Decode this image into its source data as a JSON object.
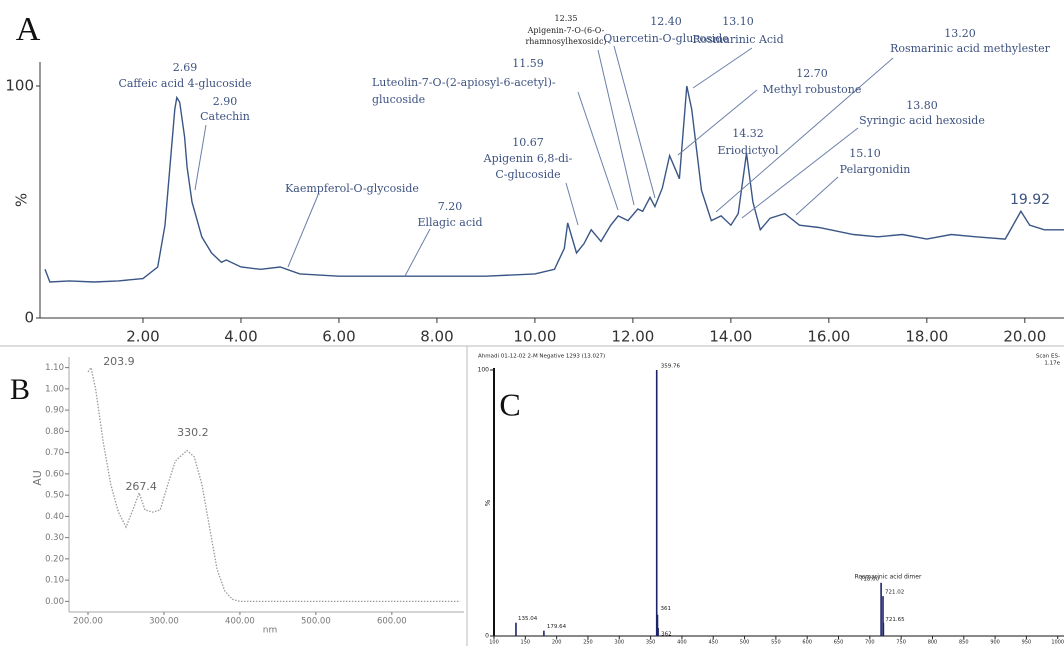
{
  "chart_data": [
    {
      "type": "line",
      "panel": "A",
      "color": "#3a5686",
      "line_style": "solid",
      "x": [
        0,
        0.1,
        0.5,
        1,
        1.5,
        2,
        2.3,
        2.45,
        2.55,
        2.65,
        2.69,
        2.75,
        2.85,
        2.9,
        3,
        3.2,
        3.4,
        3.6,
        3.7,
        4,
        4.4,
        4.8,
        5.2,
        6,
        7,
        7.2,
        8,
        9,
        10,
        10.4,
        10.6,
        10.67,
        10.85,
        11,
        11.15,
        11.35,
        11.55,
        11.7,
        11.9,
        12.1,
        12.2,
        12.35,
        12.45,
        12.6,
        12.75,
        12.85,
        12.95,
        13.1,
        13.2,
        13.4,
        13.6,
        13.8,
        14,
        14.15,
        14.32,
        14.45,
        14.6,
        14.8,
        15.1,
        15.4,
        15.8,
        16.5,
        17,
        17.5,
        18,
        18.5,
        19,
        19.6,
        19.92,
        20.1,
        20.4,
        20.8
      ],
      "values": [
        21,
        15.5,
        16,
        15.5,
        16,
        17,
        22,
        40,
        65,
        90,
        95,
        93,
        78,
        65,
        50,
        35,
        28,
        24,
        25,
        22,
        21,
        22,
        19,
        18,
        18,
        18,
        18,
        18,
        19,
        21,
        30,
        41,
        28,
        32,
        38,
        33,
        40,
        44,
        42,
        47,
        46,
        52,
        48,
        56,
        70,
        65,
        60,
        100,
        90,
        55,
        42,
        44,
        40,
        45,
        71,
        50,
        38,
        43,
        45,
        40,
        39,
        36,
        35,
        36,
        34,
        36,
        35,
        34,
        46,
        40,
        38,
        38
      ],
      "xlim": [
        0,
        20.8
      ],
      "ylim": [
        0,
        100
      ],
      "xticks": [
        {
          "value": 2,
          "label": "2.00"
        },
        {
          "value": 4,
          "label": "4.00"
        },
        {
          "value": 6,
          "label": "6.00"
        },
        {
          "value": 8,
          "label": "8.00"
        },
        {
          "value": 10,
          "label": "10.00"
        },
        {
          "value": 12,
          "label": "12.00"
        },
        {
          "value": 14,
          "label": "14.00"
        },
        {
          "value": 16,
          "label": "16.00"
        },
        {
          "value": 18,
          "label": "18.00"
        },
        {
          "value": 20,
          "label": "20.00"
        }
      ],
      "yticks": [
        0,
        100
      ],
      "ylabel": "%",
      "annotations": [
        {
          "rt": "2.69",
          "name": [
            "Caffeic acid 4-glucoside"
          ]
        },
        {
          "rt": "2.90",
          "name": [
            "Catechin"
          ]
        },
        {
          "name": [
            "Kaempferol-O-glycoside"
          ]
        },
        {
          "rt": "7.20",
          "name": [
            "Ellagic acid"
          ]
        },
        {
          "rt": "11.59",
          "name": [
            "Luteolin-7-O-(2-apiosyl-6-acetyl)-",
            "glucoside"
          ]
        },
        {
          "rt": "10.67",
          "name": [
            "Apigenin 6,8-di-",
            "C-glucoside"
          ]
        },
        {
          "rt": "12.35",
          "name": [
            "Apigenin-7-O-(6-O-",
            "rhamnosylhexosidc)"
          ]
        },
        {
          "rt": "12.40",
          "name": [
            "Quercetin-O-glucoside"
          ]
        },
        {
          "rt": "13.10",
          "name": [
            "Rosmarinic Acid"
          ]
        },
        {
          "rt": "13.20",
          "name": [
            "Rosmarinic acid methylester"
          ]
        },
        {
          "rt": "12.70",
          "name": [
            "Methyl robustone"
          ]
        },
        {
          "rt": "13.80",
          "name": [
            "Syringic acid hexoside"
          ]
        },
        {
          "rt": "14.32",
          "name": [
            "Eriodictyol"
          ]
        },
        {
          "rt": "15.10",
          "name": [
            "Pelargonidin"
          ]
        },
        {
          "rt": "19.92"
        }
      ]
    },
    {
      "type": "line",
      "panel": "B",
      "color": "#9a9a9a",
      "line_style": "dotted",
      "x": [
        200,
        203.9,
        210,
        220,
        230,
        240,
        250,
        258,
        267.4,
        275,
        285,
        295,
        305,
        315,
        330.2,
        340,
        350,
        360,
        370,
        380,
        390,
        400,
        450,
        500,
        600,
        690
      ],
      "values": [
        1.08,
        1.1,
        1.0,
        0.75,
        0.55,
        0.42,
        0.35,
        0.42,
        0.51,
        0.43,
        0.42,
        0.43,
        0.55,
        0.66,
        0.71,
        0.68,
        0.55,
        0.35,
        0.15,
        0.05,
        0.01,
        0,
        0,
        0,
        0,
        0
      ],
      "xlim": [
        175,
        695
      ],
      "ylim": [
        -0.05,
        1.15
      ],
      "xticks": [
        {
          "value": 200,
          "label": "200.00"
        },
        {
          "value": 300,
          "label": "300.00"
        },
        {
          "value": 400,
          "label": "400.00"
        },
        {
          "value": 500,
          "label": "500.00"
        },
        {
          "value": 600,
          "label": "600.00"
        }
      ],
      "yticks": [
        {
          "value": 0,
          "label": "0.00"
        },
        {
          "value": 0.1,
          "label": "0.10"
        },
        {
          "value": 0.2,
          "label": "0.20"
        },
        {
          "value": 0.3,
          "label": "0.30"
        },
        {
          "value": 0.4,
          "label": "0.40"
        },
        {
          "value": 0.5,
          "label": "0.50"
        },
        {
          "value": 0.6,
          "label": "0.60"
        },
        {
          "value": 0.7,
          "label": "0.70"
        },
        {
          "value": 0.8,
          "label": "0.80"
        },
        {
          "value": 0.9,
          "label": "0.90"
        },
        {
          "value": 1.0,
          "label": "1.00"
        },
        {
          "value": 1.1,
          "label": "1.10"
        }
      ],
      "xlabel": "nm",
      "ylabel": "AU",
      "peaks": [
        203.9,
        267.4,
        330.2
      ]
    },
    {
      "type": "bar",
      "panel": "C",
      "color": "#1c2468",
      "header": "Ahmadi 01-12-02 2-M Negative 1293 (13.027)",
      "header_right": [
        "Scan ES-",
        "1.17e"
      ],
      "x": [
        135.04,
        179.64,
        359.76,
        361,
        362,
        718,
        721.02,
        721.65
      ],
      "values": [
        5,
        2,
        100,
        8,
        3,
        20,
        15,
        5
      ],
      "x_labels": [
        "135.04",
        "179.64",
        "359.76",
        "361",
        "362",
        "718.00",
        "721.02",
        "721.65"
      ],
      "annotation": "Rosmarinic acid dimer",
      "xlim": [
        92,
        1010
      ],
      "ylim": [
        0,
        100
      ],
      "xticks": [
        100,
        150,
        200,
        250,
        300,
        350,
        400,
        450,
        500,
        550,
        600,
        650,
        700,
        750,
        800,
        850,
        900,
        950,
        1000
      ],
      "yticks": [
        0,
        100
      ],
      "ylabel": "%"
    }
  ]
}
